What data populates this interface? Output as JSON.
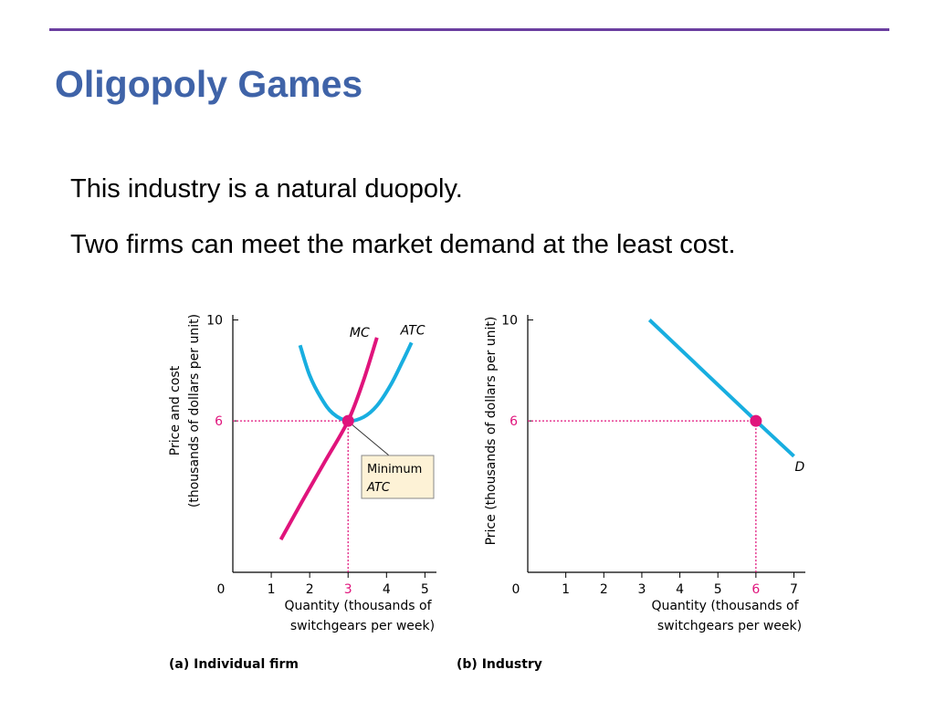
{
  "slide": {
    "title": "Oligopoly Games",
    "lines": [
      "This industry is a natural duopoly.",
      "Two firms can meet the market demand at the least cost."
    ]
  },
  "colors": {
    "title": "#3f63a8",
    "rule": "#6b3fa0",
    "mc_curve": "#e0147c",
    "atc_curve": "#18aee0",
    "demand_curve": "#18aee0",
    "guide": "#e0147c",
    "callout_fill": "#fdf2d6"
  },
  "chart_data": [
    {
      "type": "line",
      "caption": "(a) Individual firm",
      "ylabel_line1": "Price and cost",
      "ylabel_line2": "(thousands of dollars per unit)",
      "xlabel_line1": "Quantity (thousands of",
      "xlabel_line2": "switchgears per week)",
      "xlim": [
        0,
        5.3
      ],
      "ylim": [
        0,
        10.2
      ],
      "x_ticks": [
        "0",
        "1",
        "2",
        "3",
        "4",
        "5"
      ],
      "y_ticks": [
        "10",
        "6"
      ],
      "series": [
        {
          "name": "MC",
          "points": [
            [
              1.25,
              1.3
            ],
            [
              1.8,
              2.8
            ],
            [
              2.4,
              4.4
            ],
            [
              3.0,
              6.0
            ],
            [
              3.4,
              7.6
            ],
            [
              3.75,
              9.3
            ]
          ]
        },
        {
          "name": "ATC",
          "points": [
            [
              1.75,
              9.0
            ],
            [
              2.0,
              7.8
            ],
            [
              2.3,
              6.9
            ],
            [
              2.6,
              6.3
            ],
            [
              3.0,
              6.0
            ],
            [
              3.4,
              6.15
            ],
            [
              3.75,
              6.6
            ],
            [
              4.1,
              7.4
            ],
            [
              4.4,
              8.3
            ],
            [
              4.65,
              9.1
            ]
          ]
        }
      ],
      "highlight": {
        "x": 3,
        "y": 6
      },
      "highlight_x_label": "3",
      "highlight_y_label": "6",
      "annotation": {
        "line1": "Minimum",
        "line2": "ATC"
      }
    },
    {
      "type": "line",
      "caption": "(b) Industry",
      "ylabel": "Price (thousands of dollars per unit)",
      "xlabel_line1": "Quantity (thousands of",
      "xlabel_line2": "switchgears per week)",
      "xlim": [
        0,
        7.3
      ],
      "ylim": [
        0,
        10.2
      ],
      "x_ticks": [
        "0",
        "1",
        "2",
        "3",
        "4",
        "5",
        "6",
        "7"
      ],
      "y_ticks": [
        "10",
        "6"
      ],
      "series": [
        {
          "name": "D",
          "points": [
            [
              3.2,
              10.0
            ],
            [
              6.0,
              6.0
            ],
            [
              7.0,
              4.6
            ]
          ]
        }
      ],
      "highlight": {
        "x": 6,
        "y": 6
      },
      "highlight_x_label": "6",
      "highlight_y_label": "6"
    }
  ]
}
